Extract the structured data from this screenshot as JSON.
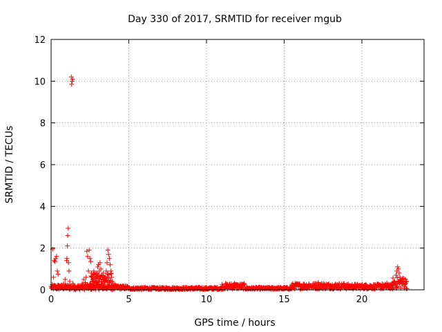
{
  "chart_data": {
    "type": "scatter",
    "title": "Day 330 of 2017, SRMTID for receiver mgub",
    "xlabel": "GPS time / hours",
    "ylabel": "SRMTID / TECUs",
    "xlim": [
      0,
      24
    ],
    "ylim": [
      0,
      12
    ],
    "xticks": [
      0,
      5,
      10,
      15,
      20
    ],
    "yticks": [
      0,
      2,
      4,
      6,
      8,
      10,
      12
    ],
    "grid": true,
    "marker": "+",
    "color": "#ff0000",
    "series": [
      {
        "name": "SRMTID",
        "points": [
          [
            0.05,
            0.1
          ],
          [
            0.1,
            1.95
          ],
          [
            0.15,
            0.6
          ],
          [
            0.2,
            1.4
          ],
          [
            0.25,
            1.35
          ],
          [
            0.3,
            1.5
          ],
          [
            0.35,
            1.6
          ],
          [
            0.4,
            0.9
          ],
          [
            0.45,
            0.75
          ],
          [
            0.5,
            0.2
          ],
          [
            0.6,
            0.15
          ],
          [
            0.7,
            0.1
          ],
          [
            0.8,
            0.3
          ],
          [
            0.9,
            0.5
          ],
          [
            0.95,
            0.2
          ],
          [
            1.0,
            1.4
          ],
          [
            1.02,
            1.5
          ],
          [
            1.05,
            2.1
          ],
          [
            1.07,
            2.6
          ],
          [
            1.1,
            2.95
          ],
          [
            1.12,
            1.3
          ],
          [
            1.15,
            0.9
          ],
          [
            1.2,
            0.4
          ],
          [
            1.3,
            10.2
          ],
          [
            1.32,
            9.85
          ],
          [
            1.35,
            10.0
          ],
          [
            1.38,
            10.1
          ],
          [
            1.4,
            0.3
          ],
          [
            1.5,
            0.2
          ],
          [
            1.6,
            0.1
          ],
          [
            1.7,
            0.15
          ],
          [
            1.8,
            0.05
          ],
          [
            1.9,
            0.1
          ],
          [
            2.0,
            0.3
          ],
          [
            2.1,
            0.5
          ],
          [
            2.2,
            0.35
          ],
          [
            2.25,
            0.6
          ],
          [
            2.3,
            1.85
          ],
          [
            2.35,
            1.6
          ],
          [
            2.4,
            0.9
          ],
          [
            2.45,
            1.9
          ],
          [
            2.5,
            1.5
          ],
          [
            2.55,
            1.35
          ],
          [
            2.6,
            0.8
          ],
          [
            2.65,
            0.6
          ],
          [
            2.7,
            0.5
          ],
          [
            2.75,
            0.9
          ],
          [
            2.8,
            0.7
          ],
          [
            2.85,
            0.55
          ],
          [
            2.9,
            0.6
          ],
          [
            2.95,
            0.8
          ],
          [
            3.0,
            1.1
          ],
          [
            3.05,
            1.2
          ],
          [
            3.1,
            0.9
          ],
          [
            3.15,
            1.3
          ],
          [
            3.2,
            1.0
          ],
          [
            3.25,
            0.7
          ],
          [
            3.3,
            0.6
          ],
          [
            3.35,
            0.8
          ],
          [
            3.4,
            0.5
          ],
          [
            3.45,
            0.4
          ],
          [
            3.5,
            0.6
          ],
          [
            3.55,
            0.9
          ],
          [
            3.6,
            1.3
          ],
          [
            3.65,
            1.9
          ],
          [
            3.7,
            1.7
          ],
          [
            3.75,
            1.5
          ],
          [
            3.8,
            1.2
          ],
          [
            3.85,
            0.9
          ],
          [
            3.9,
            0.6
          ],
          [
            3.95,
            0.4
          ],
          [
            4.0,
            0.3
          ],
          [
            4.1,
            0.25
          ],
          [
            4.2,
            0.2
          ],
          [
            4.3,
            0.18
          ],
          [
            4.4,
            0.15
          ],
          [
            4.5,
            0.15
          ],
          [
            4.6,
            0.12
          ],
          [
            4.7,
            0.14
          ],
          [
            4.8,
            0.1
          ],
          [
            5.0,
            0.08
          ],
          [
            5.3,
            0.07
          ],
          [
            5.6,
            0.06
          ],
          [
            6.0,
            0.07
          ],
          [
            6.5,
            0.08
          ],
          [
            7.0,
            0.06
          ],
          [
            7.5,
            0.07
          ],
          [
            8.0,
            0.08
          ],
          [
            8.5,
            0.06
          ],
          [
            9.0,
            0.09
          ],
          [
            9.5,
            0.07
          ],
          [
            10.0,
            0.08
          ],
          [
            10.5,
            0.1
          ],
          [
            11.0,
            0.12
          ],
          [
            11.3,
            0.18
          ],
          [
            11.6,
            0.28
          ],
          [
            11.8,
            0.32
          ],
          [
            12.0,
            0.22
          ],
          [
            12.3,
            0.12
          ],
          [
            12.6,
            0.1
          ],
          [
            13.0,
            0.09
          ],
          [
            13.5,
            0.08
          ],
          [
            14.0,
            0.1
          ],
          [
            14.5,
            0.1
          ],
          [
            15.0,
            0.11
          ],
          [
            15.5,
            0.15
          ],
          [
            16.0,
            0.2
          ],
          [
            16.3,
            0.25
          ],
          [
            16.6,
            0.28
          ],
          [
            17.0,
            0.3
          ],
          [
            17.2,
            0.35
          ],
          [
            17.5,
            0.3
          ],
          [
            17.8,
            0.25
          ],
          [
            18.0,
            0.22
          ],
          [
            18.5,
            0.18
          ],
          [
            19.0,
            0.15
          ],
          [
            19.5,
            0.12
          ],
          [
            20.0,
            0.15
          ],
          [
            20.3,
            0.22
          ],
          [
            20.6,
            0.18
          ],
          [
            21.0,
            0.22
          ],
          [
            21.3,
            0.28
          ],
          [
            21.6,
            0.32
          ],
          [
            21.8,
            0.25
          ],
          [
            22.0,
            0.3
          ],
          [
            22.1,
            0.4
          ],
          [
            22.2,
            0.7
          ],
          [
            22.25,
            0.9
          ],
          [
            22.3,
            1.1
          ],
          [
            22.35,
            1.0
          ],
          [
            22.4,
            0.8
          ],
          [
            22.45,
            0.6
          ],
          [
            22.5,
            0.45
          ],
          [
            22.6,
            0.5
          ],
          [
            22.7,
            0.55
          ],
          [
            22.8,
            0.5
          ],
          [
            22.85,
            0.4
          ]
        ],
        "density_bands": [
          {
            "x_start": 0.0,
            "x_end": 4.0,
            "low": 0.0,
            "high": 0.25
          },
          {
            "x_start": 2.5,
            "x_end": 3.9,
            "low": 0.2,
            "high": 0.8
          },
          {
            "x_start": 4.0,
            "x_end": 5.0,
            "low": 0.02,
            "high": 0.2
          },
          {
            "x_start": 5.0,
            "x_end": 11.0,
            "low": 0.01,
            "high": 0.12
          },
          {
            "x_start": 11.0,
            "x_end": 12.5,
            "low": 0.03,
            "high": 0.3
          },
          {
            "x_start": 12.5,
            "x_end": 15.5,
            "low": 0.02,
            "high": 0.12
          },
          {
            "x_start": 15.5,
            "x_end": 19.0,
            "low": 0.04,
            "high": 0.32
          },
          {
            "x_start": 19.0,
            "x_end": 22.0,
            "low": 0.03,
            "high": 0.28
          },
          {
            "x_start": 22.0,
            "x_end": 22.9,
            "low": 0.05,
            "high": 0.6
          }
        ]
      }
    ]
  }
}
